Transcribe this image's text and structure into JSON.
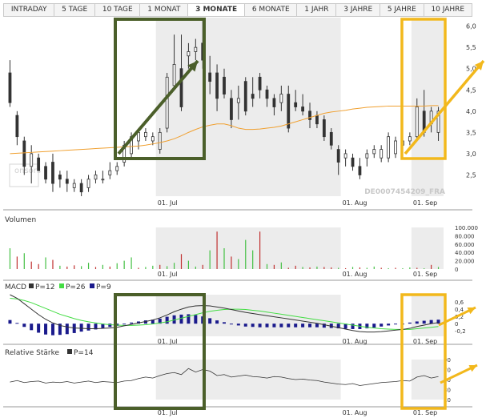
{
  "tabs": [
    {
      "label": "INTRADAY",
      "active": false
    },
    {
      "label": "5 TAGE",
      "active": false
    },
    {
      "label": "10 TAGE",
      "active": false
    },
    {
      "label": "1 MONAT",
      "active": false
    },
    {
      "label": "3 MONATE",
      "active": true
    },
    {
      "label": "6 MONATE",
      "active": false
    },
    {
      "label": "1 JAHR",
      "active": false
    },
    {
      "label": "3 JAHRE",
      "active": false
    },
    {
      "label": "5 JAHRE",
      "active": false
    },
    {
      "label": "10 JAHRE",
      "active": false
    }
  ],
  "colors": {
    "shade": "#ececec",
    "candle": "#333333",
    "ma_line": "#f0a030",
    "green_annotation": "#4b5f2a",
    "yellow_annotation": "#f2b81c",
    "vol_up": "#44c044",
    "vol_down": "#c03030",
    "macd_line": "#333333",
    "signal_line": "#44dd44",
    "histogram": "#1a1a8c",
    "rsi_line": "#333333"
  },
  "watermark": {
    "isin_label": "DE0007454209_FRA",
    "logo_text": "onsors"
  },
  "chart_data": [
    {
      "type": "candlestick",
      "name": "price",
      "ylim": [
        2.0,
        6.2
      ],
      "y_ticks": [
        "2,5",
        "3,0",
        "3,5",
        "4,0",
        "4,5",
        "5,0",
        "5,5",
        "6,0"
      ],
      "x_ticks": [
        "01. Jul",
        "01. Aug",
        "01. Sep"
      ],
      "candles": [
        {
          "o": 4.9,
          "h": 5.2,
          "l": 4.1,
          "c": 4.2
        },
        {
          "o": 3.9,
          "h": 4.0,
          "l": 3.2,
          "c": 3.4
        },
        {
          "o": 3.3,
          "h": 3.4,
          "l": 2.5,
          "c": 2.7
        },
        {
          "o": 2.7,
          "h": 3.2,
          "l": 2.3,
          "c": 3.0
        },
        {
          "o": 2.9,
          "h": 3.0,
          "l": 2.6,
          "c": 2.6
        },
        {
          "o": 2.7,
          "h": 2.8,
          "l": 2.3,
          "c": 2.4
        },
        {
          "o": 2.8,
          "h": 3.0,
          "l": 2.1,
          "c": 2.3
        },
        {
          "o": 2.5,
          "h": 2.6,
          "l": 2.2,
          "c": 2.4
        },
        {
          "o": 2.4,
          "h": 2.6,
          "l": 2.1,
          "c": 2.3
        },
        {
          "o": 2.2,
          "h": 2.4,
          "l": 2.1,
          "c": 2.3
        },
        {
          "o": 2.3,
          "h": 2.4,
          "l": 2.0,
          "c": 2.1
        },
        {
          "o": 2.2,
          "h": 2.5,
          "l": 2.1,
          "c": 2.4
        },
        {
          "o": 2.4,
          "h": 2.6,
          "l": 2.3,
          "c": 2.5
        },
        {
          "o": 2.4,
          "h": 2.6,
          "l": 2.3,
          "c": 2.4
        },
        {
          "o": 2.5,
          "h": 2.8,
          "l": 2.4,
          "c": 2.6
        },
        {
          "o": 2.6,
          "h": 2.8,
          "l": 2.5,
          "c": 2.7
        },
        {
          "o": 2.8,
          "h": 3.3,
          "l": 2.7,
          "c": 3.2
        },
        {
          "o": 3.0,
          "h": 3.5,
          "l": 2.9,
          "c": 3.4
        },
        {
          "o": 3.3,
          "h": 3.6,
          "l": 3.1,
          "c": 3.5
        },
        {
          "o": 3.4,
          "h": 3.6,
          "l": 3.3,
          "c": 3.5
        },
        {
          "o": 3.3,
          "h": 3.5,
          "l": 3.2,
          "c": 3.4
        },
        {
          "o": 3.1,
          "h": 3.6,
          "l": 3.0,
          "c": 3.5
        },
        {
          "o": 3.6,
          "h": 4.9,
          "l": 3.5,
          "c": 4.8
        },
        {
          "o": 4.6,
          "h": 5.8,
          "l": 4.5,
          "c": 5.1
        },
        {
          "o": 5.0,
          "h": 5.8,
          "l": 4.0,
          "c": 4.1
        },
        {
          "o": 5.3,
          "h": 5.6,
          "l": 5.0,
          "c": 5.4
        },
        {
          "o": 5.4,
          "h": 5.7,
          "l": 5.2,
          "c": 5.5
        },
        {
          "o": 5.6,
          "h": 6.2,
          "l": 5.0,
          "c": 5.2
        },
        {
          "o": 4.9,
          "h": 5.3,
          "l": 4.4,
          "c": 4.7
        },
        {
          "o": 4.9,
          "h": 5.1,
          "l": 4.0,
          "c": 4.3
        },
        {
          "o": 4.8,
          "h": 5.0,
          "l": 4.3,
          "c": 4.4
        },
        {
          "o": 4.3,
          "h": 4.5,
          "l": 3.6,
          "c": 3.8
        },
        {
          "o": 4.2,
          "h": 4.6,
          "l": 3.8,
          "c": 4.3
        },
        {
          "o": 4.7,
          "h": 4.8,
          "l": 3.9,
          "c": 4.0
        },
        {
          "o": 4.4,
          "h": 4.8,
          "l": 4.1,
          "c": 4.3
        },
        {
          "o": 4.8,
          "h": 4.9,
          "l": 4.3,
          "c": 4.5
        },
        {
          "o": 4.5,
          "h": 4.6,
          "l": 4.1,
          "c": 4.3
        },
        {
          "o": 4.3,
          "h": 4.4,
          "l": 3.9,
          "c": 4.1
        },
        {
          "o": 4.2,
          "h": 4.6,
          "l": 4.0,
          "c": 4.4
        },
        {
          "o": 4.4,
          "h": 4.6,
          "l": 3.5,
          "c": 3.6
        },
        {
          "o": 4.2,
          "h": 4.5,
          "l": 4.0,
          "c": 4.1
        },
        {
          "o": 4.1,
          "h": 4.4,
          "l": 3.9,
          "c": 4.0
        },
        {
          "o": 4.0,
          "h": 4.2,
          "l": 3.6,
          "c": 3.8
        },
        {
          "o": 3.9,
          "h": 4.0,
          "l": 3.6,
          "c": 3.7
        },
        {
          "o": 3.8,
          "h": 3.9,
          "l": 3.3,
          "c": 3.4
        },
        {
          "o": 3.5,
          "h": 3.6,
          "l": 3.1,
          "c": 3.2
        },
        {
          "o": 3.1,
          "h": 3.2,
          "l": 2.5,
          "c": 2.8
        },
        {
          "o": 2.9,
          "h": 3.1,
          "l": 2.7,
          "c": 3.0
        },
        {
          "o": 2.9,
          "h": 3.0,
          "l": 2.6,
          "c": 2.7
        },
        {
          "o": 2.7,
          "h": 2.9,
          "l": 2.4,
          "c": 2.5
        },
        {
          "o": 2.9,
          "h": 3.1,
          "l": 2.7,
          "c": 3.0
        },
        {
          "o": 3.0,
          "h": 3.2,
          "l": 2.9,
          "c": 3.1
        },
        {
          "o": 2.9,
          "h": 3.2,
          "l": 2.8,
          "c": 3.1
        },
        {
          "o": 2.9,
          "h": 3.5,
          "l": 2.8,
          "c": 3.4
        },
        {
          "o": 3.0,
          "h": 3.4,
          "l": 2.9,
          "c": 3.3
        },
        {
          "o": 3.2,
          "h": 3.5,
          "l": 3.0,
          "c": 3.3
        },
        {
          "o": 3.3,
          "h": 3.5,
          "l": 3.2,
          "c": 3.4
        },
        {
          "o": 3.4,
          "h": 4.3,
          "l": 3.3,
          "c": 4.1
        },
        {
          "o": 4.0,
          "h": 4.5,
          "l": 3.4,
          "c": 3.5
        },
        {
          "o": 3.7,
          "h": 4.1,
          "l": 3.5,
          "c": 4.0
        },
        {
          "o": 3.5,
          "h": 4.1,
          "l": 3.3,
          "c": 4.0
        }
      ],
      "ma_line": [
        3.0,
        3.01,
        3.02,
        3.03,
        3.04,
        3.05,
        3.06,
        3.07,
        3.08,
        3.09,
        3.1,
        3.11,
        3.12,
        3.13,
        3.14,
        3.15,
        3.16,
        3.17,
        3.18,
        3.2,
        3.23,
        3.26,
        3.3,
        3.35,
        3.42,
        3.5,
        3.57,
        3.63,
        3.67,
        3.7,
        3.7,
        3.66,
        3.6,
        3.57,
        3.57,
        3.58,
        3.6,
        3.62,
        3.65,
        3.7,
        3.75,
        3.8,
        3.85,
        3.9,
        3.95,
        3.98,
        4.0,
        4.02,
        4.05,
        4.07,
        4.09,
        4.1,
        4.11,
        4.12,
        4.12,
        4.12,
        4.12,
        4.12,
        4.12,
        4.13,
        4.13
      ]
    },
    {
      "type": "bar",
      "name": "volume",
      "title": "Volumen",
      "ylim": [
        0,
        100000
      ],
      "y_ticks": [
        "0",
        "20.000",
        "40.000",
        "60.000",
        "80.000",
        "100.000"
      ],
      "values": [
        50000,
        30000,
        38000,
        18000,
        12000,
        28000,
        22000,
        8000,
        6000,
        9000,
        7000,
        15000,
        5000,
        10000,
        6000,
        14000,
        20000,
        28000,
        3000,
        5000,
        8000,
        10000,
        7000,
        15000,
        36000,
        20000,
        6000,
        10000,
        45000,
        90000,
        50000,
        30000,
        24000,
        70000,
        45000,
        90000,
        12000,
        10000,
        16000,
        3000,
        8000,
        5000,
        4000,
        6000,
        5000,
        4000,
        3000,
        2000,
        5000,
        4000,
        3000,
        6000,
        3000,
        2000,
        3000,
        2000,
        4000,
        3000,
        2000,
        10000,
        5000
      ],
      "up": [
        1,
        0,
        1,
        0,
        0,
        1,
        0,
        1,
        0,
        0,
        1,
        1,
        0,
        1,
        0,
        1,
        1,
        1,
        0,
        1,
        1,
        0,
        1,
        1,
        0,
        1,
        1,
        0,
        1,
        0,
        1,
        0,
        1,
        1,
        1,
        0,
        1,
        0,
        1,
        0,
        0,
        1,
        0,
        1,
        0,
        0,
        1,
        0,
        1,
        0,
        1,
        1,
        0,
        1,
        0,
        1,
        1,
        0,
        1,
        0,
        1
      ]
    },
    {
      "type": "line",
      "name": "macd",
      "title": "MACD",
      "legend": [
        "P=12",
        "P=26",
        "P=9"
      ],
      "ylim": [
        -0.35,
        0.8
      ],
      "y_ticks": [
        "-0,2",
        "0",
        "0,2",
        "0,4",
        "0,6"
      ],
      "series": [
        {
          "values": [
            0.8,
            0.7,
            0.55,
            0.4,
            0.25,
            0.12,
            0.02,
            -0.05,
            -0.09,
            -0.12,
            -0.13,
            -0.14,
            -0.14,
            -0.13,
            -0.12,
            -0.1,
            -0.06,
            -0.02,
            0.02,
            0.06,
            0.1,
            0.16,
            0.24,
            0.33,
            0.4,
            0.46,
            0.49,
            0.5,
            0.49,
            0.46,
            0.43,
            0.39,
            0.35,
            0.31,
            0.28,
            0.25,
            0.22,
            0.19,
            0.16,
            0.13,
            0.1,
            0.07,
            0.04,
            0.01,
            -0.03,
            -0.07,
            -0.11,
            -0.15,
            -0.19,
            -0.22,
            -0.23,
            -0.23,
            -0.22,
            -0.2,
            -0.18,
            -0.16,
            -0.13,
            -0.08,
            -0.04,
            0.0,
            0.03
          ]
        },
        {
          "values": [
            0.7,
            0.68,
            0.64,
            0.58,
            0.5,
            0.42,
            0.34,
            0.26,
            0.2,
            0.14,
            0.09,
            0.05,
            0.02,
            -0.01,
            -0.03,
            -0.04,
            -0.05,
            -0.05,
            -0.04,
            -0.03,
            -0.01,
            0.02,
            0.05,
            0.1,
            0.15,
            0.2,
            0.25,
            0.3,
            0.34,
            0.37,
            0.39,
            0.4,
            0.4,
            0.39,
            0.37,
            0.35,
            0.32,
            0.29,
            0.26,
            0.23,
            0.2,
            0.17,
            0.14,
            0.11,
            0.08,
            0.05,
            0.02,
            -0.01,
            -0.04,
            -0.07,
            -0.1,
            -0.12,
            -0.14,
            -0.15,
            -0.16,
            -0.16,
            -0.16,
            -0.14,
            -0.12,
            -0.1,
            -0.08
          ]
        },
        {
          "values": [
            0.1,
            0.02,
            -0.09,
            -0.18,
            -0.25,
            -0.3,
            -0.32,
            -0.31,
            -0.29,
            -0.26,
            -0.22,
            -0.19,
            -0.16,
            -0.12,
            -0.09,
            -0.06,
            -0.01,
            0.03,
            0.06,
            0.09,
            0.11,
            0.14,
            0.19,
            0.23,
            0.25,
            0.26,
            0.24,
            0.2,
            0.15,
            0.09,
            0.04,
            -0.01,
            -0.05,
            -0.08,
            -0.09,
            -0.1,
            -0.1,
            -0.1,
            -0.1,
            -0.1,
            -0.1,
            -0.1,
            -0.1,
            -0.1,
            -0.11,
            -0.12,
            -0.13,
            -0.14,
            -0.15,
            -0.15,
            -0.13,
            -0.11,
            -0.08,
            -0.05,
            -0.02,
            0.0,
            0.03,
            0.06,
            0.08,
            0.1,
            0.11
          ]
        }
      ]
    },
    {
      "type": "line",
      "name": "rsi",
      "title": "Relative Stärke",
      "legend": [
        "P=14"
      ],
      "ylim": [
        10,
        90
      ],
      "y_ticks": [
        "10",
        "30",
        "50",
        "70",
        "90"
      ],
      "values": [
        45,
        48,
        44,
        46,
        47,
        43,
        45,
        44,
        46,
        43,
        45,
        47,
        44,
        46,
        45,
        44,
        47,
        48,
        52,
        55,
        53,
        58,
        62,
        64,
        60,
        72,
        65,
        70,
        67,
        58,
        60,
        55,
        57,
        59,
        56,
        55,
        53,
        56,
        55,
        52,
        50,
        51,
        49,
        48,
        45,
        43,
        41,
        40,
        42,
        38,
        40,
        42,
        44,
        45,
        46,
        48,
        47,
        55,
        58,
        53,
        56
      ]
    }
  ],
  "price_label_x_ticks": [
    "01. Jul",
    "01. Aug",
    "01. Sep"
  ]
}
